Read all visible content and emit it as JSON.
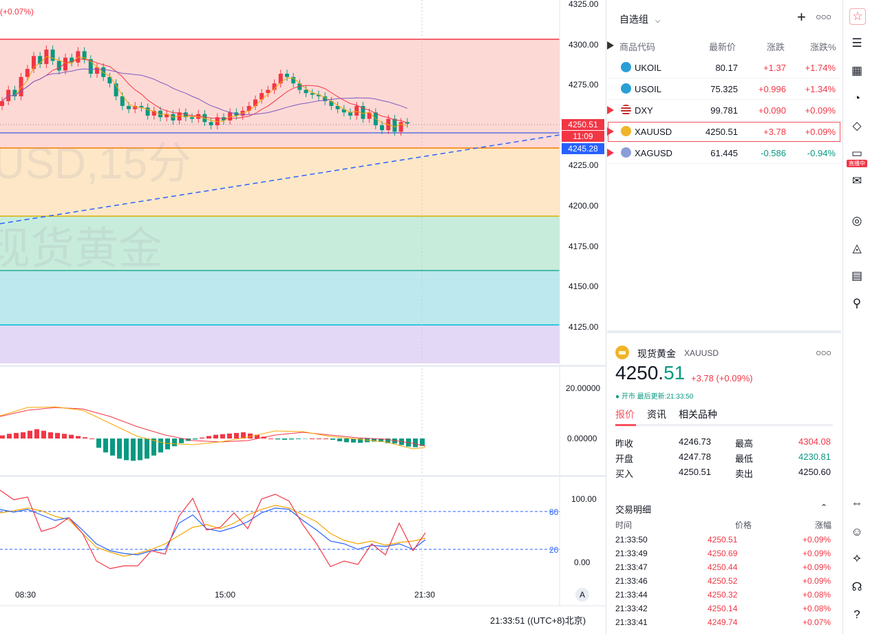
{
  "chart": {
    "change_pct": "(+0.07%)",
    "watermark_line1": "USD,15分",
    "watermark_line2": "现货黄金",
    "price_ticks": [
      "4325.00",
      "4300.00",
      "4275.00",
      "4250.00",
      "4225.00",
      "4200.00",
      "4175.00",
      "4150.00",
      "4125.00"
    ],
    "last_price_tag": "4250.51",
    "countdown_tag": "11:09",
    "line_tag": "4245.28",
    "macd_ticks": [
      "20.00000",
      "0.00000"
    ],
    "stoch_ticks": [
      "100.00",
      "0.00"
    ],
    "stoch_levels": [
      "80",
      "20"
    ],
    "time_ticks": [
      "08:30",
      "15:00",
      "21:30"
    ],
    "auto_button": "A",
    "clock": "21:33:51",
    "timezone": "((UTC+8)北京)",
    "colors": {
      "zone_red": "#fdd9d5",
      "zone_yellow": "#fde7c7",
      "zone_green": "#c8ecdc",
      "zone_cyan": "#bde8ee",
      "zone_purple": "#e3d9f6",
      "up": "#f23645",
      "down": "#089981"
    }
  },
  "watchlist": {
    "title": "自选组",
    "headers": {
      "symbol": "商品代码",
      "last": "最新价",
      "change": "涨跌",
      "change_pct": "涨跌%"
    },
    "rows": [
      {
        "symbol": "UKOIL",
        "last": "80.17",
        "change": "+1.37",
        "change_pct": "+1.74%",
        "dir": "up",
        "icon": "oil-icon"
      },
      {
        "symbol": "USOIL",
        "last": "75.325",
        "change": "+0.996",
        "change_pct": "+1.34%",
        "dir": "up",
        "icon": "oil-icon"
      },
      {
        "symbol": "DXY",
        "last": "99.781",
        "change": "+0.090",
        "change_pct": "+0.09%",
        "dir": "up",
        "icon": "us-flag-icon"
      },
      {
        "symbol": "XAUUSD",
        "last": "4250.51",
        "change": "+3.78",
        "change_pct": "+0.09%",
        "dir": "up",
        "icon": "gold-icon"
      },
      {
        "symbol": "XAGUSD",
        "last": "61.445",
        "change": "-0.586",
        "change_pct": "-0.94%",
        "dir": "down",
        "icon": "silver-icon"
      }
    ]
  },
  "detail": {
    "name": "现货黄金",
    "symbol": "XAUUSD",
    "price_main": "4250.",
    "price_tail": "51",
    "change": "+3.78 (+0.09%)",
    "status": "● 开市 最后更新:21:33:50",
    "tabs": [
      "报价",
      "资讯",
      "相关品种"
    ],
    "stats": [
      {
        "label": "昨收",
        "value": "4246.73",
        "label2": "最高",
        "value2": "4304.08"
      },
      {
        "label": "开盘",
        "value": "4247.78",
        "label2": "最低",
        "value2": "4230.81"
      },
      {
        "label": "买入",
        "value": "4250.51",
        "label2": "卖出",
        "value2": "4250.60"
      }
    ],
    "trades_title": "交易明细",
    "trades_headers": {
      "time": "时间",
      "price": "价格",
      "pct": "涨幅"
    },
    "trades": [
      {
        "time": "21:33:50",
        "price": "4250.51",
        "pct": "+0.09%"
      },
      {
        "time": "21:33:49",
        "price": "4250.69",
        "pct": "+0.09%"
      },
      {
        "time": "21:33:47",
        "price": "4250.44",
        "pct": "+0.09%"
      },
      {
        "time": "21:33:46",
        "price": "4250.52",
        "pct": "+0.09%"
      },
      {
        "time": "21:33:44",
        "price": "4250.32",
        "pct": "+0.08%"
      },
      {
        "time": "21:33:42",
        "price": "4250.14",
        "pct": "+0.08%"
      },
      {
        "time": "21:33:41",
        "price": "4249.74",
        "pct": "+0.07%"
      }
    ]
  },
  "toolbar": {
    "icons": [
      "watchlist-icon",
      "notes-icon",
      "calendar-icon",
      "alerts-icon",
      "layers-icon",
      "stream-icon",
      "chat-icon",
      "target-icon",
      "education-icon",
      "table-icon",
      "network-icon",
      "dom-icon",
      "support-icon",
      "handshake-icon",
      "headset-icon",
      "help-icon"
    ],
    "live_badge": "直播中"
  }
}
